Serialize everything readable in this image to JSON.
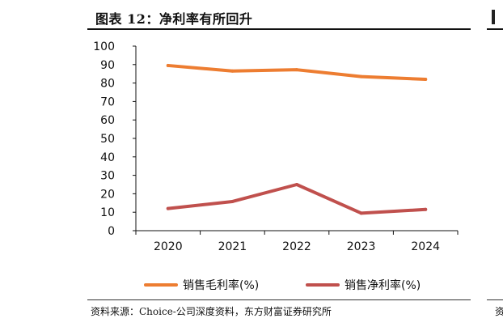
{
  "figure": {
    "title": "图表 12：净利率有所回升",
    "source": "资料来源：Choice-公司深度资料，东方财富证券研究所",
    "edge_char": "资"
  },
  "chart_data": {
    "type": "line",
    "title": "图表 12：净利率有所回升",
    "x": [
      "2020",
      "2021",
      "2022",
      "2023",
      "2024"
    ],
    "ylim": [
      0,
      100
    ],
    "yticks": [
      0,
      10,
      20,
      30,
      40,
      50,
      60,
      70,
      80,
      90,
      100
    ],
    "xlabel": "",
    "ylabel": "",
    "grid": false,
    "legend_position": "bottom",
    "series": [
      {
        "name": "销售毛利率(%)",
        "color": "#ED7D31",
        "values": [
          89.5,
          86.5,
          87.2,
          83.5,
          82.0
        ]
      },
      {
        "name": "销售净利率(%)",
        "color": "#C0504D",
        "values": [
          12.0,
          15.8,
          25.0,
          9.5,
          11.5
        ]
      }
    ]
  }
}
